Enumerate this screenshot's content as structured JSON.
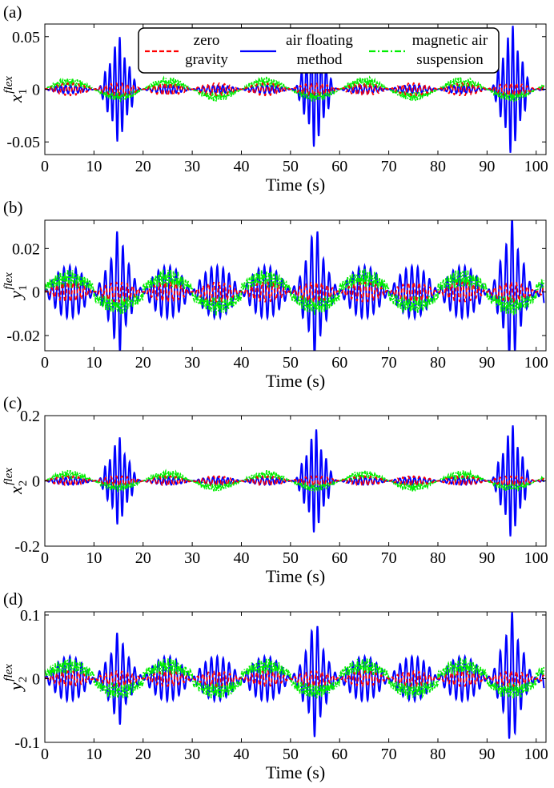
{
  "colors": {
    "zero_gravity": "#ff0000",
    "air_floating": "#0000ff",
    "magnetic_air": "#00ee00",
    "axis": "#000000"
  },
  "legend": {
    "placement": "top",
    "entries": [
      {
        "series": "zero_gravity",
        "line1": "zero",
        "line2": "gravity",
        "style": "dashed"
      },
      {
        "series": "air_floating",
        "line1": "air floating",
        "line2": "method",
        "style": "solid"
      },
      {
        "series": "magnetic_air",
        "line1": "magnetic air",
        "line2": "suspension",
        "style": "dash-dot"
      }
    ]
  },
  "chart_data": [
    {
      "panel_label": "(a)",
      "type": "line",
      "ylabel_base": "x",
      "ylabel_sub": "1",
      "ylabel_sup": "flex",
      "xlabel": "Time (s)",
      "xlim": [
        0,
        102
      ],
      "ylim": [
        -0.062,
        0.062
      ],
      "xticks": [
        0,
        10,
        20,
        30,
        40,
        50,
        60,
        70,
        80,
        90,
        100
      ],
      "yticks": [
        -0.05,
        0,
        0.05
      ],
      "ytick_labels": [
        "-0.05",
        "0",
        "0.05"
      ],
      "series": [
        {
          "key": "zero_gravity",
          "envelope": "20s cycles",
          "amplitude_mean": 0.006,
          "period_s": 1.1
        },
        {
          "key": "air_floating",
          "burst_centers_s": [
            15,
            55,
            95
          ],
          "burst_amplitudes": [
            0.051,
            0.056,
            0.062
          ],
          "between_burst_amplitude": 0.004,
          "period_s": 1.0
        },
        {
          "key": "magnetic_air",
          "envelope": "20s cycles",
          "amplitude_mean": 0.009,
          "period_s": 0.5
        }
      ]
    },
    {
      "panel_label": "(b)",
      "type": "line",
      "ylabel_base": "y",
      "ylabel_sub": "1",
      "ylabel_sup": "flex",
      "xlabel": "Time (s)",
      "xlim": [
        0,
        102
      ],
      "ylim": [
        -0.027,
        0.033
      ],
      "xticks": [
        0,
        10,
        20,
        30,
        40,
        50,
        60,
        70,
        80,
        90,
        100
      ],
      "yticks": [
        -0.02,
        0,
        0.02
      ],
      "ytick_labels": [
        "-0.02",
        "0",
        "0.02"
      ],
      "series": [
        {
          "key": "zero_gravity",
          "envelope": "20s cycles",
          "amplitude_mean": 0.0045,
          "period_s": 1.1
        },
        {
          "key": "air_floating",
          "burst_centers_s": [
            15,
            55,
            95
          ],
          "burst_amplitudes": [
            0.029,
            0.031,
            0.034
          ],
          "between_burst_amplitude": 0.012,
          "period_s": 1.2
        },
        {
          "key": "magnetic_air",
          "envelope": "10s hump cycles",
          "amplitude_mean": 0.008,
          "period_s": 0.5
        }
      ]
    },
    {
      "panel_label": "(c)",
      "type": "line",
      "ylabel_base": "x",
      "ylabel_sub": "2",
      "ylabel_sup": "flex",
      "xlabel": "Time (s)",
      "xlim": [
        0,
        102
      ],
      "ylim": [
        -0.2,
        0.2
      ],
      "xticks": [
        0,
        10,
        20,
        30,
        40,
        50,
        60,
        70,
        80,
        90,
        100
      ],
      "yticks": [
        -0.2,
        0,
        0.2
      ],
      "ytick_labels": [
        "-0.2",
        "0",
        "0.2"
      ],
      "series": [
        {
          "key": "zero_gravity",
          "envelope": "20s cycles",
          "amplitude_mean": 0.015,
          "period_s": 1.1
        },
        {
          "key": "air_floating",
          "burst_centers_s": [
            15,
            55,
            95
          ],
          "burst_amplitudes": [
            0.137,
            0.162,
            0.175
          ],
          "between_burst_amplitude": 0.012,
          "period_s": 1.0
        },
        {
          "key": "magnetic_air",
          "envelope": "20s cycles",
          "amplitude_mean": 0.025,
          "period_s": 0.5
        }
      ]
    },
    {
      "panel_label": "(d)",
      "type": "line",
      "ylabel_base": "y",
      "ylabel_sub": "2",
      "ylabel_sup": "flex",
      "xlabel": "Time (s)",
      "xlim": [
        0,
        102
      ],
      "ylim": [
        -0.1,
        0.105
      ],
      "xticks": [
        0,
        10,
        20,
        30,
        40,
        50,
        60,
        70,
        80,
        90,
        100
      ],
      "yticks": [
        -0.1,
        0,
        0.1
      ],
      "ytick_labels": [
        "-0.1",
        "0",
        "0.1"
      ],
      "series": [
        {
          "key": "zero_gravity",
          "envelope": "20s cycles",
          "amplitude_mean": 0.012,
          "period_s": 1.1
        },
        {
          "key": "air_floating",
          "burst_centers_s": [
            15,
            55,
            95
          ],
          "burst_amplitudes": [
            0.075,
            0.092,
            0.105
          ],
          "between_burst_amplitude": 0.035,
          "period_s": 1.2
        },
        {
          "key": "magnetic_air",
          "envelope": "10s hump cycles",
          "amplitude_mean": 0.025,
          "period_s": 0.5
        }
      ]
    }
  ]
}
